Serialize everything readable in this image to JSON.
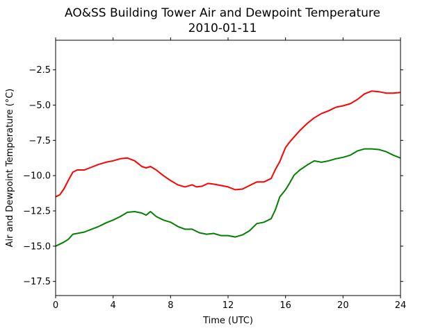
{
  "chart_data": {
    "type": "line",
    "title": "AO&SS Building Tower Air and Dewpoint Temperature",
    "subtitle": "2010-01-11",
    "xlabel": "Time (UTC)",
    "ylabel": "Air and Dewpoint Temperature (°C)",
    "xlim": [
      0,
      24
    ],
    "ylim": [
      -18.5,
      -0.4
    ],
    "xticks": [
      0,
      4,
      8,
      12,
      16,
      20,
      24
    ],
    "yticks": [
      -17.5,
      -15.0,
      -12.5,
      -10.0,
      -7.5,
      -5.0,
      -2.5
    ],
    "grid": false,
    "series": [
      {
        "color": "#ff0000",
        "x": [
          0,
          0.3,
          0.6,
          0.9,
          1.2,
          1.5,
          2.0,
          2.5,
          3.0,
          3.5,
          4.0,
          4.5,
          5.0,
          5.5,
          6.0,
          6.3,
          6.6,
          7.0,
          7.5,
          8.0,
          8.5,
          9.0,
          9.5,
          9.8,
          10.2,
          10.6,
          11.0,
          11.5,
          12.0,
          12.5,
          13.0,
          13.5,
          14.0,
          14.5,
          15.0,
          15.3,
          15.6,
          15.8,
          16.0,
          16.3,
          16.6,
          17.0,
          17.5,
          18.0,
          18.5,
          19.0,
          19.5,
          20.0,
          20.5,
          21.0,
          21.5,
          22.0,
          22.5,
          23.0,
          23.5,
          24.0
        ],
        "y": [
          -11.5,
          -11.35,
          -10.9,
          -10.3,
          -9.75,
          -9.6,
          -9.6,
          -9.4,
          -9.2,
          -9.05,
          -8.95,
          -8.8,
          -8.75,
          -8.95,
          -9.35,
          -9.45,
          -9.35,
          -9.6,
          -10.0,
          -10.35,
          -10.65,
          -10.8,
          -10.65,
          -10.8,
          -10.75,
          -10.55,
          -10.6,
          -10.7,
          -10.8,
          -11.0,
          -10.95,
          -10.7,
          -10.45,
          -10.45,
          -10.2,
          -9.55,
          -9.0,
          -8.5,
          -8.0,
          -7.6,
          -7.25,
          -6.8,
          -6.3,
          -5.9,
          -5.6,
          -5.4,
          -5.15,
          -5.05,
          -4.9,
          -4.6,
          -4.2,
          -4.0,
          -4.05,
          -4.15,
          -4.15,
          -4.1
        ]
      },
      {
        "color": "#008000",
        "x": [
          0,
          0.3,
          0.6,
          0.9,
          1.2,
          1.5,
          2.0,
          2.5,
          3.0,
          3.5,
          4.0,
          4.5,
          5.0,
          5.5,
          6.0,
          6.3,
          6.6,
          7.0,
          7.5,
          8.0,
          8.5,
          9.0,
          9.5,
          10.0,
          10.5,
          11.0,
          11.5,
          12.0,
          12.5,
          13.0,
          13.5,
          14.0,
          14.5,
          15.0,
          15.3,
          15.6,
          16.0,
          16.3,
          16.6,
          17.0,
          17.5,
          18.0,
          18.5,
          19.0,
          19.5,
          20.0,
          20.5,
          21.0,
          21.5,
          22.0,
          22.5,
          23.0,
          23.5,
          24.0
        ],
        "y": [
          -15.0,
          -14.85,
          -14.7,
          -14.5,
          -14.15,
          -14.1,
          -14.0,
          -13.8,
          -13.6,
          -13.35,
          -13.15,
          -12.9,
          -12.6,
          -12.55,
          -12.65,
          -12.8,
          -12.55,
          -12.9,
          -13.15,
          -13.3,
          -13.6,
          -13.8,
          -13.8,
          -14.05,
          -14.15,
          -14.1,
          -14.25,
          -14.25,
          -14.35,
          -14.2,
          -13.9,
          -13.4,
          -13.3,
          -13.05,
          -12.4,
          -11.5,
          -11.0,
          -10.5,
          -9.95,
          -9.6,
          -9.25,
          -8.95,
          -9.05,
          -8.95,
          -8.8,
          -8.7,
          -8.55,
          -8.25,
          -8.1,
          -8.1,
          -8.15,
          -8.3,
          -8.55,
          -8.75
        ]
      }
    ]
  }
}
